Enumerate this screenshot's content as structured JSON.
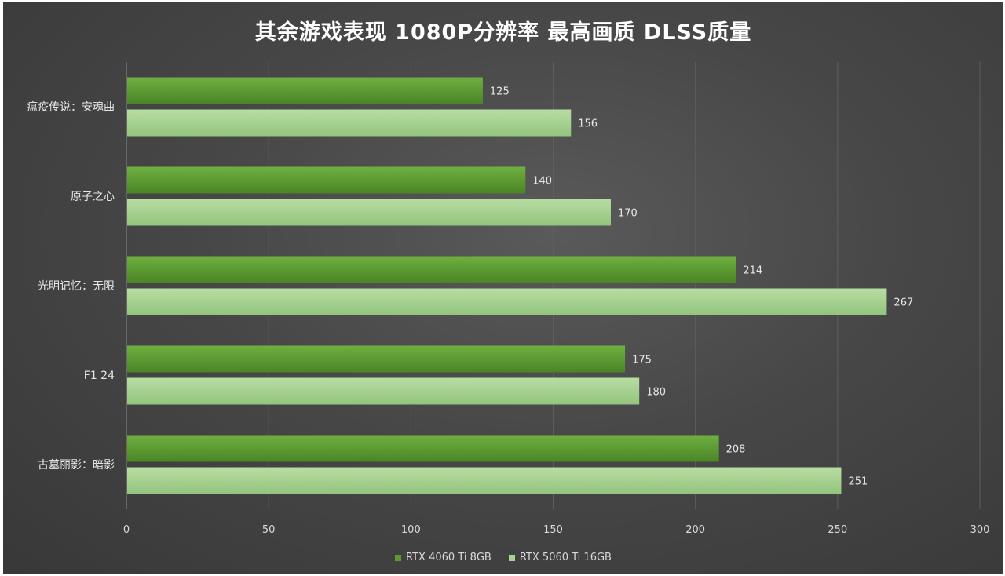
{
  "chart_data": {
    "type": "bar",
    "orientation": "horizontal",
    "title": "其余游戏表现 1080P分辨率 最高画质 DLSS质量",
    "categories": [
      "瘟疫传说：安魂曲",
      "原子之心",
      "光明记忆：无限",
      "F1 24",
      "古墓丽影：暗影"
    ],
    "series": [
      {
        "name": "RTX 4060 Ti 8GB",
        "values": [
          125,
          140,
          214,
          175,
          208
        ],
        "color": "#5b9a32"
      },
      {
        "name": "RTX 5060 Ti 16GB",
        "values": [
          156,
          170,
          267,
          180,
          251
        ],
        "color": "#a6d38f"
      }
    ],
    "xlim": [
      0,
      300
    ],
    "xticks": [
      0,
      50,
      100,
      150,
      200,
      250,
      300
    ],
    "grid": true,
    "legend_position": "bottom",
    "data_labels": true
  }
}
